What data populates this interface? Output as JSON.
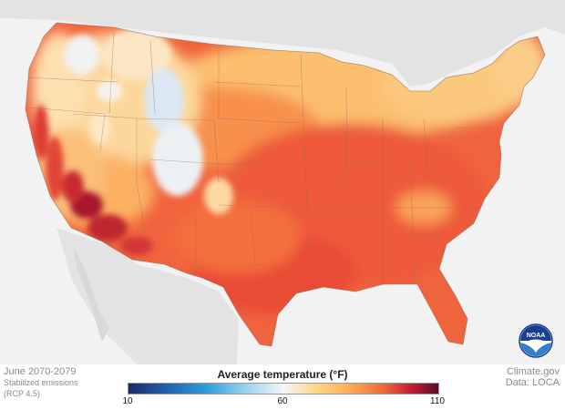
{
  "map": {
    "region": "Contiguous United States",
    "colors": {
      "land_bg": "#e3e3e3",
      "ocean": "#f2f2f2",
      "borders": "#9c6a52",
      "warm_base": "#f0643d",
      "hot": "#c0282f",
      "mild": "#fbbf6e",
      "cool": "#fbe6c4"
    }
  },
  "footer": {
    "period": "June 2070-2079",
    "scenario_line1": "Stabilized emissions",
    "scenario_line2": "(RCP 4.5)",
    "credit": "Climate.gov",
    "source": "Data: LOCA"
  },
  "legend": {
    "title": "Average temperature (°F)",
    "ticks": [
      "10",
      "60",
      "110"
    ],
    "tick_values": [
      10,
      60,
      110
    ],
    "range": [
      10,
      110
    ]
  },
  "logo": {
    "text": "NOAA",
    "icon": "noaa-logo-icon"
  }
}
